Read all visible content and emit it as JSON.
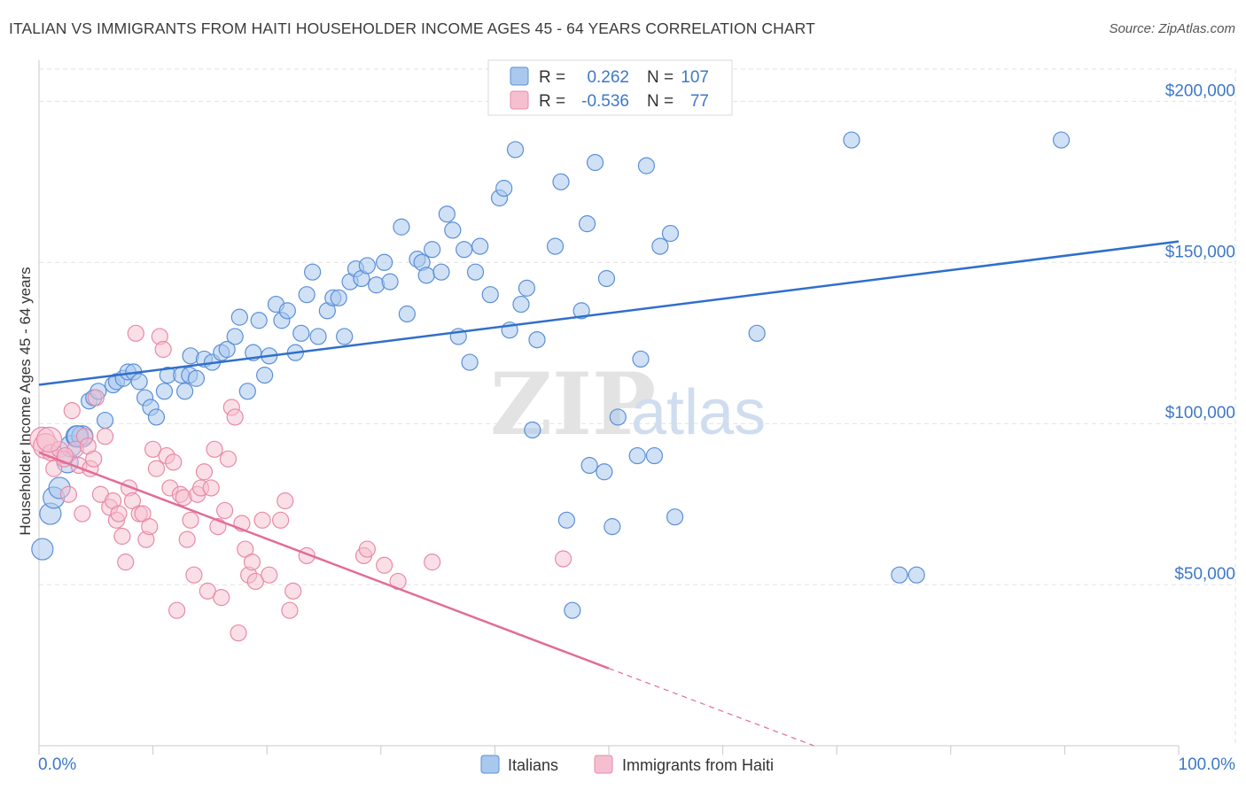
{
  "title": "ITALIAN VS IMMIGRANTS FROM HAITI HOUSEHOLDER INCOME AGES 45 - 64 YEARS CORRELATION CHART",
  "source": "Source: ZipAtlas.com",
  "watermark": {
    "zip": "ZIP",
    "atlas": "atlas"
  },
  "legend": {
    "row1": {
      "r_label": "R =",
      "r_value": "0.262",
      "n_label": "N =",
      "n_value": "107"
    },
    "row2": {
      "r_label": "R =",
      "r_value": "-0.536",
      "n_label": "N =",
      "n_value": "77"
    }
  },
  "colors": {
    "blue_fill": "#a9c8ee",
    "blue_stroke": "#5b8fd6",
    "blue_line": "#2f6fcb",
    "pink_fill": "#f6bfd0",
    "pink_stroke": "#e88aa8",
    "pink_line": "#e26c98",
    "axis_text": "#3d78c9",
    "grid": "#e2e2e2"
  },
  "chart_data": {
    "type": "scatter",
    "title": "ITALIAN VS IMMIGRANTS FROM HAITI HOUSEHOLDER INCOME AGES 45 - 64 YEARS CORRELATION CHART",
    "xlabel": "",
    "ylabel": "Householder Income Ages 45 - 64 years",
    "xlim": [
      0,
      100
    ],
    "ylim": [
      0,
      210000
    ],
    "x_tick_labels": [
      "0.0%",
      "100.0%"
    ],
    "y_ticks": [
      50000,
      100000,
      150000,
      200000
    ],
    "y_tick_labels": [
      "$50,000",
      "$100,000",
      "$150,000",
      "$200,000"
    ],
    "legend_placement": "top-center",
    "grid": true,
    "series": [
      {
        "name": "Italians",
        "r": 0.262,
        "n": 107,
        "trend": {
          "x": [
            0,
            100
          ],
          "y": [
            112000,
            156500
          ]
        },
        "points": [
          [
            0.3,
            61000
          ],
          [
            1.0,
            72000
          ],
          [
            1.3,
            77000
          ],
          [
            1.8,
            80000
          ],
          [
            2.5,
            88000
          ],
          [
            2.8,
            93000
          ],
          [
            3.3,
            96000
          ],
          [
            3.8,
            96000
          ],
          [
            4.4,
            107000
          ],
          [
            4.8,
            108000
          ],
          [
            5.8,
            101000
          ],
          [
            5.2,
            110000
          ],
          [
            6.5,
            112000
          ],
          [
            6.8,
            113000
          ],
          [
            7.4,
            114000
          ],
          [
            7.8,
            116000
          ],
          [
            8.3,
            116000
          ],
          [
            8.8,
            113000
          ],
          [
            9.3,
            108000
          ],
          [
            9.8,
            105000
          ],
          [
            10.3,
            102000
          ],
          [
            11.0,
            110000
          ],
          [
            11.3,
            115000
          ],
          [
            12.5,
            115000
          ],
          [
            12.8,
            110000
          ],
          [
            13.2,
            115000
          ],
          [
            13.8,
            114000
          ],
          [
            13.3,
            121000
          ],
          [
            14.5,
            120000
          ],
          [
            15.2,
            119000
          ],
          [
            16.0,
            122000
          ],
          [
            16.5,
            123000
          ],
          [
            17.2,
            127000
          ],
          [
            17.6,
            133000
          ],
          [
            18.3,
            110000
          ],
          [
            18.8,
            122000
          ],
          [
            19.3,
            132000
          ],
          [
            19.8,
            115000
          ],
          [
            20.2,
            121000
          ],
          [
            20.8,
            137000
          ],
          [
            21.3,
            132000
          ],
          [
            21.8,
            135000
          ],
          [
            22.5,
            122000
          ],
          [
            23.0,
            128000
          ],
          [
            23.5,
            140000
          ],
          [
            24.0,
            147000
          ],
          [
            24.5,
            127000
          ],
          [
            25.3,
            135000
          ],
          [
            25.8,
            139000
          ],
          [
            26.3,
            139000
          ],
          [
            26.8,
            127000
          ],
          [
            27.3,
            144000
          ],
          [
            27.8,
            148000
          ],
          [
            28.3,
            145000
          ],
          [
            28.8,
            149000
          ],
          [
            29.6,
            143000
          ],
          [
            30.3,
            150000
          ],
          [
            30.8,
            144000
          ],
          [
            31.8,
            161000
          ],
          [
            32.3,
            134000
          ],
          [
            33.2,
            151000
          ],
          [
            33.6,
            150000
          ],
          [
            34.0,
            146000
          ],
          [
            34.5,
            154000
          ],
          [
            35.3,
            147000
          ],
          [
            35.8,
            165000
          ],
          [
            36.3,
            160000
          ],
          [
            36.8,
            127000
          ],
          [
            37.3,
            154000
          ],
          [
            37.8,
            119000
          ],
          [
            38.3,
            147000
          ],
          [
            38.7,
            155000
          ],
          [
            39.6,
            140000
          ],
          [
            40.4,
            170000
          ],
          [
            40.8,
            173000
          ],
          [
            41.3,
            129000
          ],
          [
            41.8,
            185000
          ],
          [
            42.3,
            137000
          ],
          [
            42.8,
            142000
          ],
          [
            43.3,
            98000
          ],
          [
            43.7,
            126000
          ],
          [
            45.3,
            155000
          ],
          [
            45.8,
            175000
          ],
          [
            46.3,
            70000
          ],
          [
            46.8,
            42000
          ],
          [
            47.6,
            135000
          ],
          [
            48.1,
            162000
          ],
          [
            48.3,
            87000
          ],
          [
            48.8,
            181000
          ],
          [
            49.8,
            145000
          ],
          [
            49.6,
            85000
          ],
          [
            50.3,
            68000
          ],
          [
            50.8,
            102000
          ],
          [
            52.5,
            90000
          ],
          [
            52.8,
            120000
          ],
          [
            53.3,
            180000
          ],
          [
            54.0,
            90000
          ],
          [
            54.5,
            155000
          ],
          [
            55.4,
            159000
          ],
          [
            55.8,
            71000
          ],
          [
            63.0,
            128000
          ],
          [
            71.3,
            188000
          ],
          [
            75.5,
            53000
          ],
          [
            77.0,
            53000
          ],
          [
            89.7,
            188000
          ],
          [
            3.4,
            96000
          ]
        ]
      },
      {
        "name": "Immigrants from Haiti",
        "r": -0.536,
        "n": 77,
        "trend": {
          "x": [
            0,
            50
          ],
          "y": [
            91000,
            24000
          ]
        },
        "trend_dashed": {
          "x": [
            50,
            68
          ],
          "y": [
            24000,
            0
          ]
        },
        "points": [
          [
            0.3,
            95000
          ],
          [
            0.6,
            93000
          ],
          [
            1.0,
            91000
          ],
          [
            1.3,
            86000
          ],
          [
            1.8,
            92000
          ],
          [
            2.2,
            89000
          ],
          [
            2.6,
            78000
          ],
          [
            2.9,
            104000
          ],
          [
            3.2,
            92000
          ],
          [
            3.5,
            87000
          ],
          [
            3.8,
            72000
          ],
          [
            4.0,
            96000
          ],
          [
            4.3,
            93000
          ],
          [
            4.5,
            86000
          ],
          [
            4.8,
            89000
          ],
          [
            5.0,
            108000
          ],
          [
            5.4,
            78000
          ],
          [
            5.8,
            96000
          ],
          [
            6.2,
            74000
          ],
          [
            6.5,
            76000
          ],
          [
            6.8,
            70000
          ],
          [
            7.0,
            72000
          ],
          [
            7.3,
            65000
          ],
          [
            7.6,
            57000
          ],
          [
            7.9,
            80000
          ],
          [
            8.2,
            76000
          ],
          [
            8.5,
            128000
          ],
          [
            8.8,
            72000
          ],
          [
            9.1,
            72000
          ],
          [
            9.4,
            64000
          ],
          [
            9.7,
            68000
          ],
          [
            10.0,
            92000
          ],
          [
            10.3,
            86000
          ],
          [
            10.6,
            127000
          ],
          [
            10.9,
            123000
          ],
          [
            11.2,
            90000
          ],
          [
            11.5,
            80000
          ],
          [
            11.8,
            88000
          ],
          [
            12.1,
            42000
          ],
          [
            12.4,
            78000
          ],
          [
            12.7,
            77000
          ],
          [
            13.0,
            64000
          ],
          [
            13.3,
            70000
          ],
          [
            13.6,
            53000
          ],
          [
            13.9,
            78000
          ],
          [
            14.2,
            80000
          ],
          [
            14.5,
            85000
          ],
          [
            14.8,
            48000
          ],
          [
            15.1,
            80000
          ],
          [
            15.4,
            92000
          ],
          [
            15.7,
            68000
          ],
          [
            16.0,
            46000
          ],
          [
            16.3,
            73000
          ],
          [
            16.6,
            89000
          ],
          [
            16.9,
            105000
          ],
          [
            17.2,
            102000
          ],
          [
            17.5,
            35000
          ],
          [
            17.8,
            69000
          ],
          [
            18.1,
            61000
          ],
          [
            18.4,
            53000
          ],
          [
            18.7,
            57000
          ],
          [
            19.0,
            51000
          ],
          [
            19.6,
            70000
          ],
          [
            20.2,
            53000
          ],
          [
            21.2,
            70000
          ],
          [
            21.6,
            76000
          ],
          [
            22.0,
            42000
          ],
          [
            22.3,
            48000
          ],
          [
            23.5,
            59000
          ],
          [
            28.5,
            59000
          ],
          [
            28.8,
            61000
          ],
          [
            30.3,
            56000
          ],
          [
            31.5,
            51000
          ],
          [
            34.5,
            57000
          ],
          [
            46.0,
            58000
          ],
          [
            0.9,
            95000
          ],
          [
            2.3,
            90000
          ]
        ]
      }
    ]
  }
}
